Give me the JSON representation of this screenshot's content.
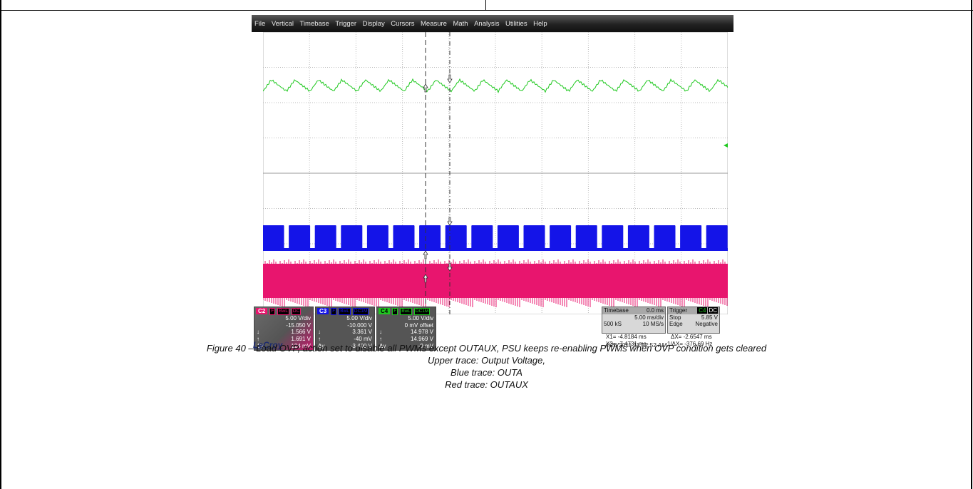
{
  "menu": [
    "File",
    "Vertical",
    "Timebase",
    "Trigger",
    "Display",
    "Cursors",
    "Measure",
    "Math",
    "Analysis",
    "Utilities",
    "Help"
  ],
  "trace_labels": {
    "c4": "C4",
    "c3": "C3",
    "c2": "C2"
  },
  "colors": {
    "c2": "#e8156e",
    "c3": "#1414e8",
    "c4": "#1ec81e",
    "menubar": "#222222"
  },
  "channels": [
    {
      "tag": "C2",
      "flags": [
        "F",
        "BwL",
        "DC"
      ],
      "rows": [
        [
          "",
          "5.00 V/div"
        ],
        [
          "",
          "-15.050 V"
        ],
        [
          "↓",
          "1.566 V"
        ],
        [
          "↑",
          "1.691 V"
        ],
        [
          "Δy",
          "124 mV"
        ]
      ]
    },
    {
      "tag": "C3",
      "flags": [
        "F",
        "BwL",
        "DC1M"
      ],
      "rows": [
        [
          "",
          "5.00 V/div"
        ],
        [
          "",
          "-10.000 V"
        ],
        [
          "↓",
          "3.361 V"
        ],
        [
          "↑",
          "-40 mV"
        ],
        [
          "Δy",
          "-3.400 V"
        ]
      ]
    },
    {
      "tag": "C4",
      "flags": [
        "F",
        "BwL",
        "DC1M"
      ],
      "rows": [
        [
          "",
          "5.00 V/div"
        ],
        [
          "",
          "0 mV offset"
        ],
        [
          "↓",
          "14.978 V"
        ],
        [
          "↑",
          "14.969 V"
        ],
        [
          "Δy",
          "-9 mV"
        ]
      ]
    }
  ],
  "timebase": {
    "label": "Timebase",
    "value": "0.0 ms",
    "per_div": "5.00 ms/div",
    "samples": "500 kS",
    "rate": "10 MS/s"
  },
  "trigger": {
    "label": "Trigger",
    "source": "C4",
    "coupling": "DC",
    "mode": "Stop",
    "level": "5.85 V",
    "type": "Edge",
    "slope": "Negative"
  },
  "cursors": {
    "x1": "X1= -4.8184 ms",
    "x2": "X2= -7.4731 ms",
    "dx": "ΔX= -2.6547 ms",
    "inv_dx": "1/ΔX= -376.69 Hz"
  },
  "brand": "LeCroy",
  "timestamp": "4/20/2011 11:22:52 AM",
  "caption": {
    "line1": "Figure 40 – Load OVP, action set to disable all PWMs except OUTAUX, PSU keeps re-enabling PWMs when OVP condition gets cleared",
    "line2": "Upper trace: Output Voltage,",
    "line3": "Blue trace: OUTA",
    "line4": "Red trace: OUTAUX"
  }
}
